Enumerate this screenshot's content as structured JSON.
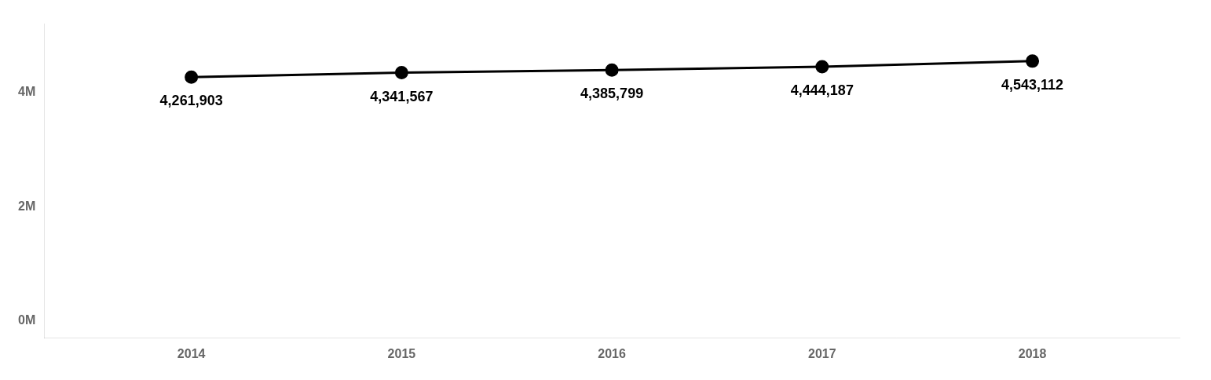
{
  "chart_data": {
    "type": "line",
    "x": [
      2014,
      2015,
      2016,
      2017,
      2018
    ],
    "values": [
      4261903,
      4341567,
      4385799,
      4444187,
      4543112
    ],
    "value_labels": [
      "4,261,903",
      "4,341,567",
      "4,385,799",
      "4,444,187",
      "4,543,112"
    ],
    "data_labels": true,
    "color": "#000000",
    "marker": "o",
    "xlim": [
      2013.3,
      2018.7
    ],
    "xticks": [
      2014,
      2015,
      2016,
      2017,
      2018
    ],
    "ylim": [
      -300000,
      5200000
    ],
    "yticks": [
      {
        "value": 0,
        "label": "0M"
      },
      {
        "value": 2000000,
        "label": "2M"
      },
      {
        "value": 4000000,
        "label": "4M"
      }
    ],
    "grid": false
  }
}
